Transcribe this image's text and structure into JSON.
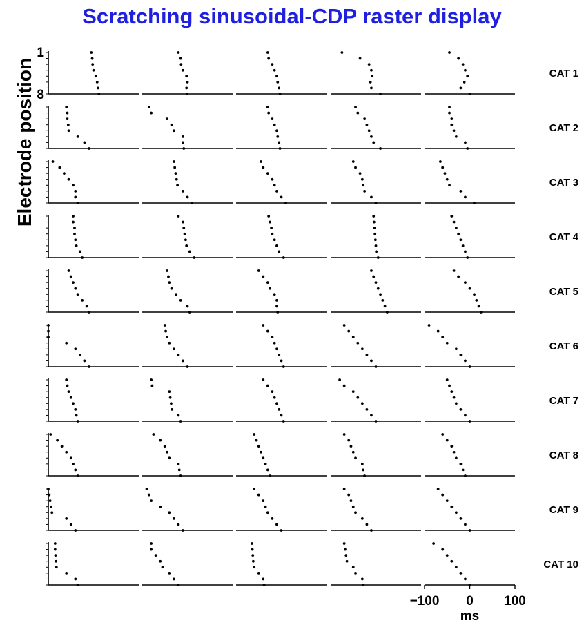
{
  "chart_data": {
    "type": "scatter",
    "title": "Scratching sinusoidal-CDP raster display",
    "ylabel": "Electrode position",
    "xlabel": "ms",
    "x_ticks": [
      -100,
      0,
      100
    ],
    "x_tick_labels": [
      "−100",
      "0",
      "100"
    ],
    "xlim": [
      -100,
      100
    ],
    "y_ticks": [
      1,
      8
    ],
    "y_tick_labels": [
      "1",
      "8"
    ],
    "ylim": [
      1,
      8
    ],
    "columns": 5,
    "rows": [
      {
        "label": "CAT 1",
        "panels": [
          [
            -5,
            -3,
            -2,
            0,
            5,
            8,
            10,
            12
          ],
          [
            -20,
            -15,
            -14,
            -10,
            -2,
            0,
            -2,
            -1
          ],
          [
            -30,
            -28,
            -20,
            -15,
            -10,
            -8,
            -5,
            -3
          ],
          [
            -75,
            -35,
            -15,
            -10,
            -8,
            -12,
            -10,
            10
          ],
          [
            -45,
            -25,
            -15,
            -10,
            -5,
            -12,
            -20,
            0
          ]
        ]
      },
      {
        "label": "CAT 2",
        "panels": [
          [
            -60,
            -58,
            -58,
            -56,
            -55,
            -35,
            -20,
            -10
          ],
          [
            -85,
            -80,
            -45,
            -35,
            -30,
            -10,
            -10,
            -8
          ],
          [
            -30,
            -28,
            -20,
            -15,
            -10,
            -8,
            -5,
            -3
          ],
          [
            -45,
            -40,
            -25,
            -20,
            -15,
            -10,
            -5,
            10
          ],
          [
            -45,
            -45,
            -40,
            -40,
            -35,
            -30,
            -10,
            -5
          ]
        ]
      },
      {
        "label": "CAT 3",
        "panels": [
          [
            -90,
            -75,
            -65,
            -55,
            -45,
            -40,
            -40,
            -35
          ],
          [
            -30,
            -28,
            -26,
            -24,
            -22,
            -10,
            0,
            10
          ],
          [
            -45,
            -40,
            -30,
            -20,
            -15,
            -10,
            0,
            10
          ],
          [
            -50,
            -45,
            -35,
            -30,
            -28,
            -25,
            -10,
            0
          ],
          [
            -65,
            -60,
            -55,
            -50,
            -45,
            -20,
            -10,
            10
          ]
        ]
      },
      {
        "label": "CAT 4",
        "panels": [
          [
            -45,
            -45,
            -42,
            -42,
            -40,
            -38,
            -30,
            -25
          ],
          [
            -20,
            -10,
            -8,
            -6,
            -4,
            -2,
            5,
            15
          ],
          [
            -28,
            -25,
            -22,
            -20,
            -15,
            -10,
            -5,
            5
          ],
          [
            -5,
            -4,
            -3,
            -2,
            -1,
            0,
            1,
            5
          ],
          [
            -40,
            -35,
            -30,
            -25,
            -20,
            -15,
            -10,
            -5
          ]
        ]
      },
      {
        "label": "CAT 5",
        "panels": [
          [
            -55,
            -50,
            -45,
            -40,
            -35,
            -25,
            -15,
            -10
          ],
          [
            -45,
            -42,
            -40,
            -35,
            -25,
            -15,
            0,
            5
          ],
          [
            -50,
            -40,
            -30,
            -25,
            -15,
            -10,
            -10,
            -8
          ],
          [
            -10,
            -5,
            0,
            5,
            10,
            15,
            20,
            25
          ],
          [
            -35,
            -25,
            -10,
            0,
            10,
            15,
            20,
            25
          ]
        ]
      },
      {
        "label": "CAT 6",
        "panels": [
          [
            -100,
            -100,
            -100,
            -60,
            -40,
            -30,
            -20,
            -10
          ],
          [
            -50,
            -48,
            -45,
            -40,
            -30,
            -20,
            -10,
            0
          ],
          [
            -40,
            -30,
            -20,
            -15,
            -10,
            -5,
            0,
            5
          ],
          [
            -70,
            -60,
            -50,
            -40,
            -30,
            -20,
            -10,
            0
          ],
          [
            -90,
            -70,
            -60,
            -50,
            -30,
            -20,
            -10,
            0
          ]
        ]
      },
      {
        "label": "CAT 7",
        "panels": [
          [
            -60,
            -58,
            -55,
            -50,
            -45,
            -40,
            -38,
            -35
          ],
          [
            -80,
            -78,
            -40,
            -38,
            -36,
            -34,
            -20,
            -15
          ],
          [
            -40,
            -30,
            -20,
            -15,
            -10,
            -5,
            0,
            5
          ],
          [
            -80,
            -70,
            -50,
            -40,
            -30,
            -20,
            -10,
            0
          ],
          [
            -50,
            -45,
            -40,
            -35,
            -30,
            -20,
            -10,
            0
          ]
        ]
      },
      {
        "label": "CAT 8",
        "panels": [
          [
            -95,
            -80,
            -70,
            -60,
            -50,
            -45,
            -40,
            -35
          ],
          [
            -75,
            -60,
            -50,
            -45,
            -40,
            -20,
            -18,
            -15
          ],
          [
            -60,
            -55,
            -50,
            -45,
            -40,
            -35,
            -30,
            -25
          ],
          [
            -70,
            -60,
            -55,
            -50,
            -45,
            -30,
            -28,
            -25
          ],
          [
            -60,
            -50,
            -40,
            -35,
            -30,
            -20,
            -15,
            -10
          ]
        ]
      },
      {
        "label": "CAT 9",
        "panels": [
          [
            -100,
            -98,
            -96,
            -94,
            -92,
            -60,
            -50,
            -40
          ],
          [
            -90,
            -85,
            -80,
            -60,
            -40,
            -30,
            -20,
            -10
          ],
          [
            -60,
            -50,
            -40,
            -35,
            -30,
            -20,
            -10,
            0
          ],
          [
            -70,
            -60,
            -55,
            -50,
            -45,
            -30,
            -20,
            -10
          ],
          [
            -70,
            -60,
            -50,
            -40,
            -30,
            -20,
            -10,
            0
          ]
        ]
      },
      {
        "label": "CAT 10",
        "panels": [
          [
            -85,
            -85,
            -84,
            -83,
            -82,
            -60,
            -40,
            -35
          ],
          [
            -80,
            -80,
            -70,
            -60,
            -55,
            -40,
            -30,
            -20
          ],
          [
            -65,
            -64,
            -63,
            -62,
            -60,
            -50,
            -40,
            -38
          ],
          [
            -70,
            -68,
            -66,
            -64,
            -50,
            -45,
            -30,
            -28
          ],
          [
            -80,
            -60,
            -50,
            -40,
            -30,
            -20,
            -10,
            0
          ]
        ]
      }
    ]
  }
}
